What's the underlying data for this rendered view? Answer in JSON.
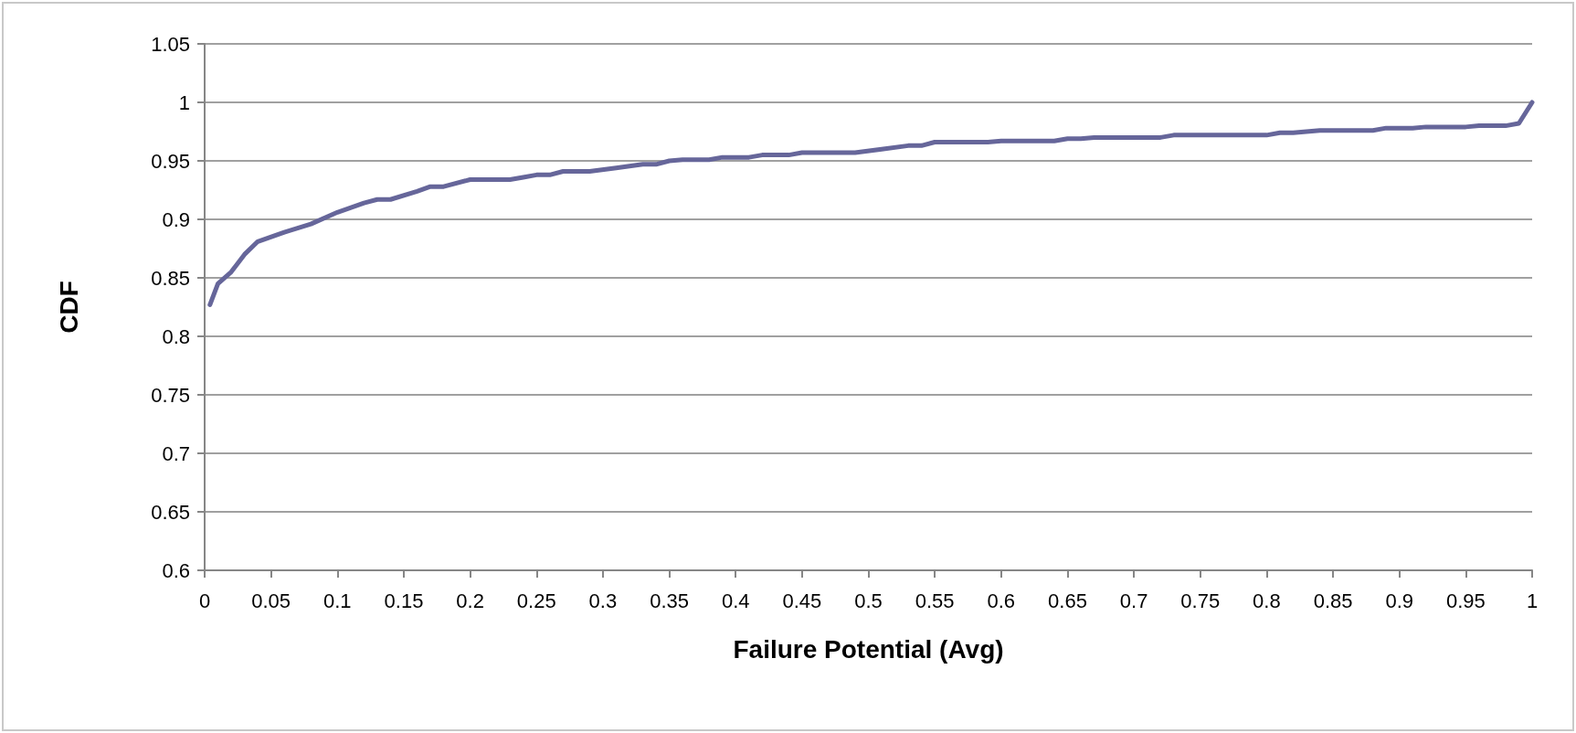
{
  "chart_data": {
    "type": "line",
    "xlabel": "Failure Potential (Avg)",
    "ylabel": "CDF",
    "x": [
      0.004,
      0.01,
      0.02,
      0.03,
      0.04,
      0.06,
      0.08,
      0.1,
      0.12,
      0.13,
      0.14,
      0.16,
      0.17,
      0.18,
      0.2,
      0.22,
      0.23,
      0.24,
      0.25,
      0.26,
      0.27,
      0.29,
      0.31,
      0.33,
      0.34,
      0.35,
      0.36,
      0.38,
      0.39,
      0.41,
      0.42,
      0.44,
      0.45,
      0.49,
      0.51,
      0.53,
      0.54,
      0.55,
      0.59,
      0.6,
      0.64,
      0.65,
      0.66,
      0.67,
      0.72,
      0.73,
      0.8,
      0.81,
      0.82,
      0.84,
      0.88,
      0.89,
      0.91,
      0.92,
      0.95,
      0.96,
      0.98,
      0.99,
      1
    ],
    "series": [
      {
        "color": "#66669a",
        "values": [
          0.827,
          0.845,
          0.855,
          0.87,
          0.881,
          0.889,
          0.896,
          0.906,
          0.914,
          0.917,
          0.917,
          0.924,
          0.928,
          0.928,
          0.934,
          0.934,
          0.934,
          0.936,
          0.938,
          0.938,
          0.941,
          0.941,
          0.944,
          0.947,
          0.947,
          0.95,
          0.951,
          0.951,
          0.953,
          0.953,
          0.955,
          0.955,
          0.957,
          0.957,
          0.96,
          0.963,
          0.963,
          0.966,
          0.966,
          0.967,
          0.967,
          0.969,
          0.969,
          0.97,
          0.97,
          0.972,
          0.972,
          0.974,
          0.974,
          0.976,
          0.976,
          0.978,
          0.978,
          0.979,
          0.979,
          0.98,
          0.98,
          0.982,
          1.0
        ]
      }
    ],
    "xlim": [
      0,
      1
    ],
    "xticks": [
      0,
      0.05,
      0.1,
      0.15,
      0.2,
      0.25,
      0.3,
      0.35,
      0.4,
      0.45,
      0.5,
      0.55,
      0.6,
      0.65,
      0.7,
      0.75,
      0.8,
      0.85,
      0.9,
      0.95,
      1
    ],
    "ylim": [
      0.6,
      1.05
    ],
    "yticks": [
      0.6,
      0.65,
      0.7,
      0.75,
      0.8,
      0.85,
      0.9,
      0.95,
      1,
      1.05
    ],
    "grid": "y",
    "marker": "none",
    "line_style": "solid"
  }
}
